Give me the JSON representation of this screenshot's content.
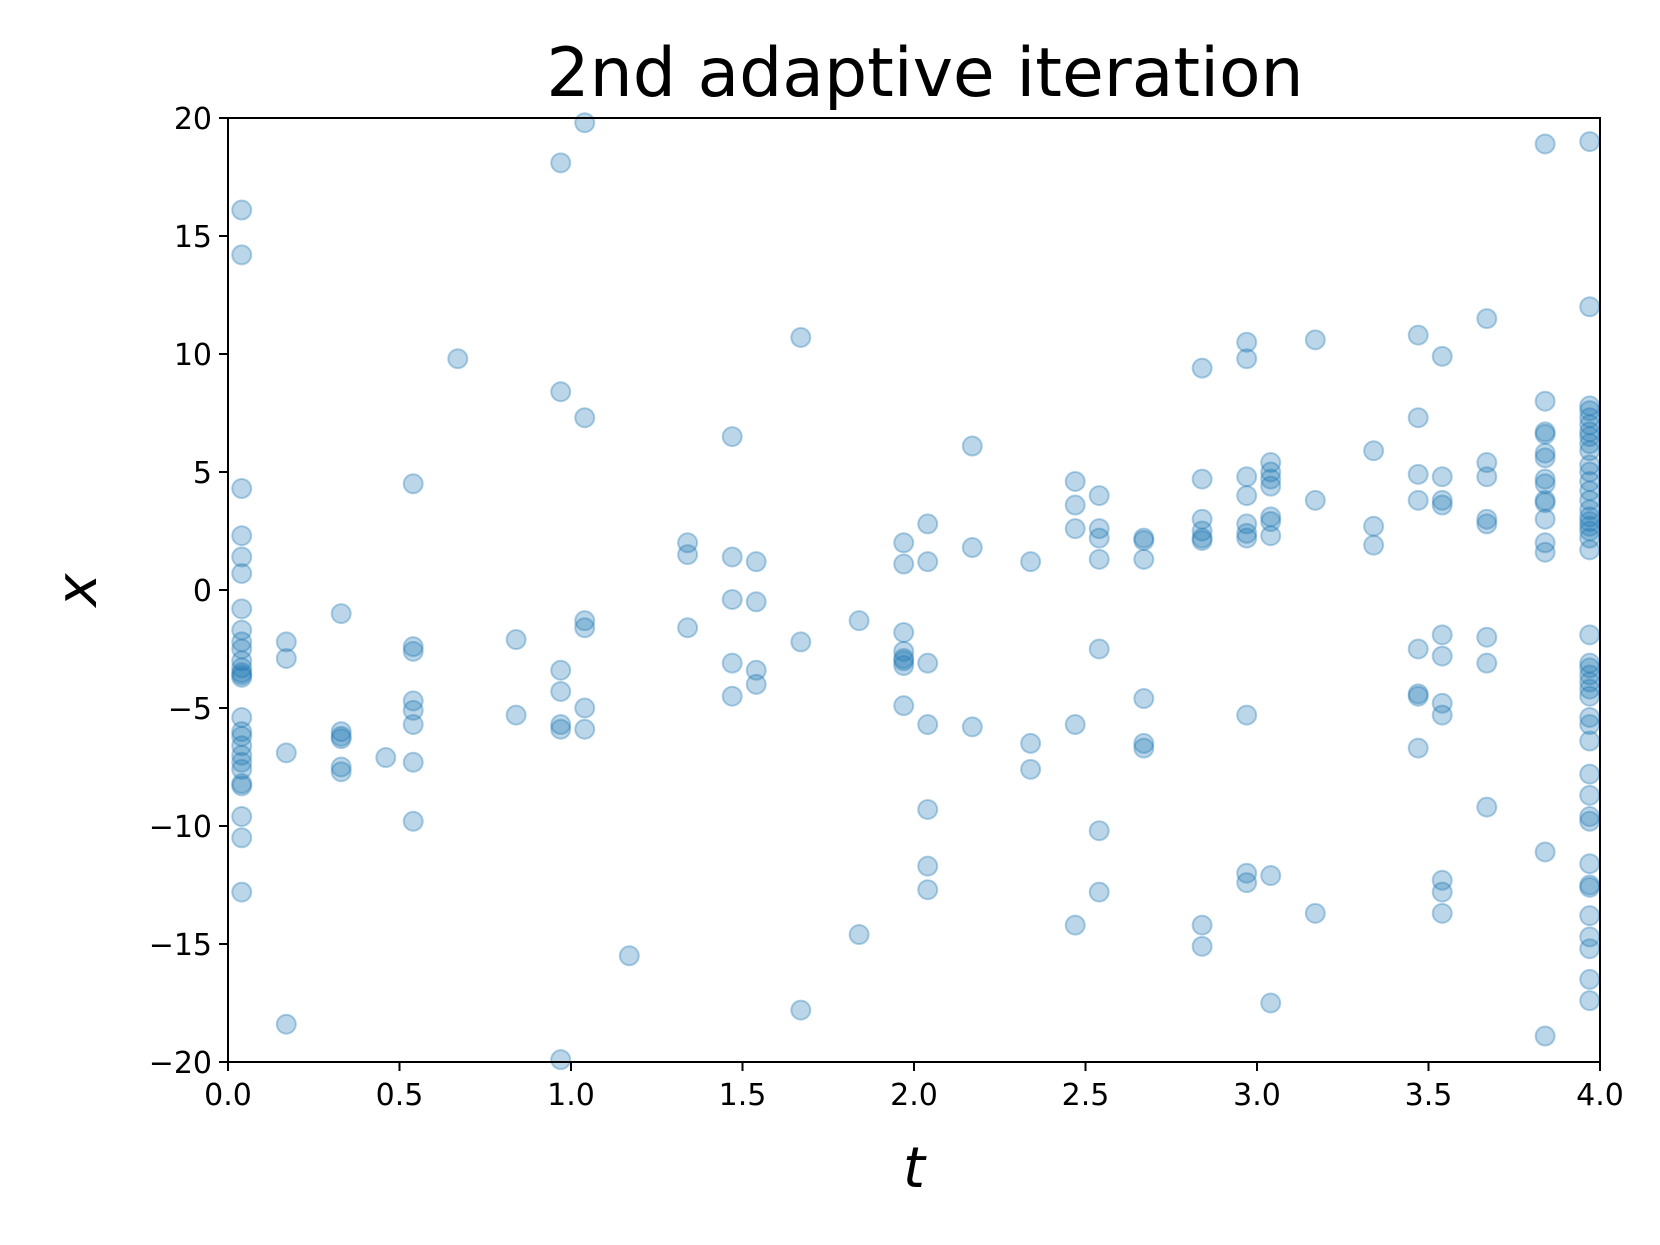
{
  "chart_data": {
    "type": "scatter",
    "title": "2nd adaptive iteration",
    "xlabel": "t",
    "ylabel": "x",
    "xlim": [
      0.0,
      4.0
    ],
    "ylim": [
      -20,
      20
    ],
    "xticks": [
      0.0,
      0.5,
      1.0,
      1.5,
      2.0,
      2.5,
      3.0,
      3.5,
      4.0
    ],
    "xtick_labels": [
      "0.0",
      "0.5",
      "1.0",
      "1.5",
      "2.0",
      "2.5",
      "3.0",
      "3.5",
      "4.0"
    ],
    "yticks": [
      20,
      15,
      10,
      5,
      0,
      -5,
      -10,
      -15,
      -20
    ],
    "ytick_labels": [
      "20",
      "15",
      "10",
      "5",
      "0",
      "−5",
      "−10",
      "−15",
      "−20"
    ],
    "grid": false,
    "marker_color": "#1f77b4",
    "marker_alpha": 0.3,
    "series": [
      {
        "points": [
          [
            0.04,
            16.1
          ],
          [
            0.04,
            14.2
          ],
          [
            0.04,
            4.3
          ],
          [
            0.04,
            2.3
          ],
          [
            0.04,
            1.4
          ],
          [
            0.04,
            0.7
          ],
          [
            0.04,
            -0.8
          ],
          [
            0.04,
            -1.7
          ],
          [
            0.04,
            -2.2
          ],
          [
            0.04,
            -2.5
          ],
          [
            0.04,
            -3.0
          ],
          [
            0.04,
            -3.3
          ],
          [
            0.04,
            -3.5
          ],
          [
            0.04,
            -3.6
          ],
          [
            0.04,
            -3.7
          ],
          [
            0.04,
            -5.4
          ],
          [
            0.04,
            -6.0
          ],
          [
            0.04,
            -6.2
          ],
          [
            0.04,
            -6.6
          ],
          [
            0.04,
            -7.0
          ],
          [
            0.04,
            -7.3
          ],
          [
            0.04,
            -7.6
          ],
          [
            0.04,
            -8.2
          ],
          [
            0.04,
            -8.3
          ],
          [
            0.04,
            -9.6
          ],
          [
            0.04,
            -10.5
          ],
          [
            0.04,
            -12.8
          ],
          [
            0.17,
            -2.2
          ],
          [
            0.17,
            -2.9
          ],
          [
            0.17,
            -6.9
          ],
          [
            0.17,
            -18.4
          ],
          [
            0.33,
            -1.0
          ],
          [
            0.33,
            -6.0
          ],
          [
            0.33,
            -6.2
          ],
          [
            0.33,
            -6.3
          ],
          [
            0.33,
            -7.5
          ],
          [
            0.33,
            -7.7
          ],
          [
            0.46,
            -7.1
          ],
          [
            0.54,
            4.5
          ],
          [
            0.54,
            -2.4
          ],
          [
            0.54,
            -2.6
          ],
          [
            0.54,
            -4.7
          ],
          [
            0.54,
            -5.1
          ],
          [
            0.54,
            -5.7
          ],
          [
            0.54,
            -7.3
          ],
          [
            0.54,
            -9.8
          ],
          [
            0.67,
            9.8
          ],
          [
            0.84,
            -2.1
          ],
          [
            0.84,
            -5.3
          ],
          [
            0.97,
            18.1
          ],
          [
            0.97,
            8.4
          ],
          [
            0.97,
            -3.4
          ],
          [
            0.97,
            -4.3
          ],
          [
            0.97,
            -5.7
          ],
          [
            0.97,
            -5.9
          ],
          [
            0.97,
            -19.9
          ],
          [
            1.04,
            19.8
          ],
          [
            1.04,
            7.3
          ],
          [
            1.04,
            -1.3
          ],
          [
            1.04,
            -1.6
          ],
          [
            1.04,
            -5.0
          ],
          [
            1.04,
            -5.9
          ],
          [
            1.17,
            -15.5
          ],
          [
            1.34,
            2.0
          ],
          [
            1.34,
            1.5
          ],
          [
            1.34,
            -1.6
          ],
          [
            1.47,
            6.5
          ],
          [
            1.47,
            1.4
          ],
          [
            1.47,
            -0.4
          ],
          [
            1.47,
            -3.1
          ],
          [
            1.47,
            -4.5
          ],
          [
            1.54,
            1.2
          ],
          [
            1.54,
            -0.5
          ],
          [
            1.54,
            -3.4
          ],
          [
            1.54,
            -4.0
          ],
          [
            1.67,
            10.7
          ],
          [
            1.67,
            -2.2
          ],
          [
            1.67,
            -17.8
          ],
          [
            1.84,
            -1.3
          ],
          [
            1.84,
            -14.6
          ],
          [
            1.97,
            2.0
          ],
          [
            1.97,
            1.1
          ],
          [
            1.97,
            -1.8
          ],
          [
            1.97,
            -2.6
          ],
          [
            1.97,
            -2.9
          ],
          [
            1.97,
            -3.0
          ],
          [
            1.97,
            -3.2
          ],
          [
            1.97,
            -4.9
          ],
          [
            2.04,
            2.8
          ],
          [
            2.04,
            1.2
          ],
          [
            2.04,
            -3.1
          ],
          [
            2.04,
            -5.7
          ],
          [
            2.04,
            -9.3
          ],
          [
            2.04,
            -11.7
          ],
          [
            2.04,
            -12.7
          ],
          [
            2.17,
            6.1
          ],
          [
            2.17,
            1.8
          ],
          [
            2.17,
            -5.8
          ],
          [
            2.34,
            1.2
          ],
          [
            2.34,
            -6.5
          ],
          [
            2.34,
            -7.6
          ],
          [
            2.47,
            4.6
          ],
          [
            2.47,
            3.6
          ],
          [
            2.47,
            2.6
          ],
          [
            2.47,
            -5.7
          ],
          [
            2.47,
            -14.2
          ],
          [
            2.54,
            4.0
          ],
          [
            2.54,
            2.6
          ],
          [
            2.54,
            2.2
          ],
          [
            2.54,
            1.3
          ],
          [
            2.54,
            -2.5
          ],
          [
            2.54,
            -10.2
          ],
          [
            2.54,
            -12.8
          ],
          [
            2.67,
            2.2
          ],
          [
            2.67,
            2.1
          ],
          [
            2.67,
            1.3
          ],
          [
            2.67,
            -4.6
          ],
          [
            2.67,
            -6.5
          ],
          [
            2.67,
            -6.7
          ],
          [
            2.84,
            9.4
          ],
          [
            2.84,
            4.7
          ],
          [
            2.84,
            3.0
          ],
          [
            2.84,
            2.5
          ],
          [
            2.84,
            2.2
          ],
          [
            2.84,
            2.1
          ],
          [
            2.84,
            -14.2
          ],
          [
            2.84,
            -15.1
          ],
          [
            2.97,
            10.5
          ],
          [
            2.97,
            9.8
          ],
          [
            2.97,
            4.8
          ],
          [
            2.97,
            4.0
          ],
          [
            2.97,
            2.8
          ],
          [
            2.97,
            2.4
          ],
          [
            2.97,
            2.2
          ],
          [
            2.97,
            -5.3
          ],
          [
            2.97,
            -12.0
          ],
          [
            2.97,
            -12.4
          ],
          [
            3.04,
            5.4
          ],
          [
            3.04,
            5.0
          ],
          [
            3.04,
            4.7
          ],
          [
            3.04,
            4.4
          ],
          [
            3.04,
            3.1
          ],
          [
            3.04,
            2.9
          ],
          [
            3.04,
            2.3
          ],
          [
            3.04,
            -12.1
          ],
          [
            3.04,
            -17.5
          ],
          [
            3.17,
            10.6
          ],
          [
            3.17,
            3.8
          ],
          [
            3.17,
            -13.7
          ],
          [
            3.34,
            5.9
          ],
          [
            3.34,
            2.7
          ],
          [
            3.34,
            1.9
          ],
          [
            3.47,
            10.8
          ],
          [
            3.47,
            7.3
          ],
          [
            3.47,
            4.9
          ],
          [
            3.47,
            3.8
          ],
          [
            3.47,
            -2.5
          ],
          [
            3.47,
            -4.4
          ],
          [
            3.47,
            -4.5
          ],
          [
            3.47,
            -6.7
          ],
          [
            3.54,
            9.9
          ],
          [
            3.54,
            4.8
          ],
          [
            3.54,
            3.8
          ],
          [
            3.54,
            3.6
          ],
          [
            3.54,
            -1.9
          ],
          [
            3.54,
            -2.8
          ],
          [
            3.54,
            -4.8
          ],
          [
            3.54,
            -5.3
          ],
          [
            3.54,
            -12.3
          ],
          [
            3.54,
            -12.8
          ],
          [
            3.54,
            -13.7
          ],
          [
            3.67,
            11.5
          ],
          [
            3.67,
            5.4
          ],
          [
            3.67,
            4.8
          ],
          [
            3.67,
            3.0
          ],
          [
            3.67,
            2.8
          ],
          [
            3.67,
            -2.0
          ],
          [
            3.67,
            -3.1
          ],
          [
            3.67,
            -9.2
          ],
          [
            3.84,
            18.9
          ],
          [
            3.84,
            8.0
          ],
          [
            3.84,
            6.7
          ],
          [
            3.84,
            6.6
          ],
          [
            3.84,
            5.8
          ],
          [
            3.84,
            5.6
          ],
          [
            3.84,
            4.7
          ],
          [
            3.84,
            4.5
          ],
          [
            3.84,
            3.8
          ],
          [
            3.84,
            3.7
          ],
          [
            3.84,
            3.0
          ],
          [
            3.84,
            2.0
          ],
          [
            3.84,
            1.6
          ],
          [
            3.84,
            -11.1
          ],
          [
            3.84,
            -18.9
          ],
          [
            3.97,
            19.0
          ],
          [
            3.97,
            12.0
          ],
          [
            3.97,
            7.8
          ],
          [
            3.97,
            7.6
          ],
          [
            3.97,
            7.3
          ],
          [
            3.97,
            7.0
          ],
          [
            3.97,
            6.7
          ],
          [
            3.97,
            6.5
          ],
          [
            3.97,
            6.2
          ],
          [
            3.97,
            5.9
          ],
          [
            3.97,
            5.3
          ],
          [
            3.97,
            5.0
          ],
          [
            3.97,
            4.6
          ],
          [
            3.97,
            4.2
          ],
          [
            3.97,
            3.8
          ],
          [
            3.97,
            3.4
          ],
          [
            3.97,
            3.1
          ],
          [
            3.97,
            2.9
          ],
          [
            3.97,
            2.7
          ],
          [
            3.97,
            2.5
          ],
          [
            3.97,
            2.2
          ],
          [
            3.97,
            1.7
          ],
          [
            3.97,
            -1.9
          ],
          [
            3.97,
            -3.1
          ],
          [
            3.97,
            -3.3
          ],
          [
            3.97,
            -3.6
          ],
          [
            3.97,
            -3.9
          ],
          [
            3.97,
            -4.2
          ],
          [
            3.97,
            -4.5
          ],
          [
            3.97,
            -5.4
          ],
          [
            3.97,
            -5.7
          ],
          [
            3.97,
            -6.4
          ],
          [
            3.97,
            -7.8
          ],
          [
            3.97,
            -8.7
          ],
          [
            3.97,
            -9.6
          ],
          [
            3.97,
            -9.8
          ],
          [
            3.97,
            -11.6
          ],
          [
            3.97,
            -12.5
          ],
          [
            3.97,
            -12.6
          ],
          [
            3.97,
            -13.8
          ],
          [
            3.97,
            -14.7
          ],
          [
            3.97,
            -15.2
          ],
          [
            3.97,
            -16.5
          ],
          [
            3.97,
            -17.4
          ]
        ]
      }
    ]
  }
}
